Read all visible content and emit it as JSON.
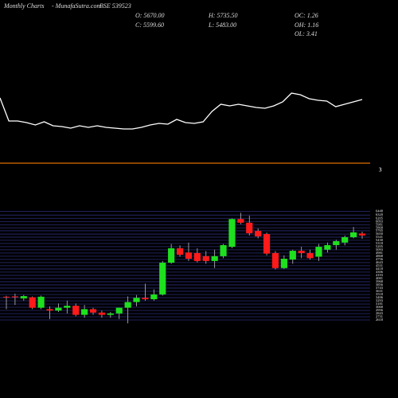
{
  "header": {
    "site_title": "Monthly Charts",
    "site_name": "- MunafaSutra.com",
    "symbol": "BSE 539523",
    "open": "O: 5670.00",
    "high": "H: 5735.50",
    "close": "C: 5599.60",
    "low": "L: 5483.00",
    "oc": "OC: 1.26",
    "oh": "OH: 1.16",
    "ol": "OL: 3.41"
  },
  "chart_data": [
    {
      "type": "line",
      "color": "#ffffff",
      "ylim": [
        0,
        80
      ],
      "values": [
        57,
        28,
        28,
        26,
        23,
        27,
        22,
        21,
        19,
        22,
        20,
        22,
        20,
        19,
        18,
        18,
        20,
        23,
        25,
        24,
        30,
        26,
        25,
        27,
        40,
        49,
        47,
        49,
        47,
        45,
        44,
        47,
        52,
        63,
        61,
        56,
        54,
        53,
        46,
        49,
        52,
        55
      ]
    },
    {
      "type": "candlestick",
      "level_label": "3",
      "level_color": "#e07000",
      "up_color": "#1ee01e",
      "down_color": "#ff1a1a",
      "grid_color": "#2c2c7a",
      "ylim": [
        2450,
        6550
      ],
      "yticks": [
        6448,
        6320,
        6205,
        6093,
        5981,
        5868,
        5765,
        5650,
        5541,
        5430,
        5318,
        5205,
        5093,
        4981,
        4868,
        4756,
        4643,
        4531,
        4418,
        4306,
        4193,
        4081,
        3968,
        3856,
        3743,
        3631,
        3518,
        3406,
        3293,
        3181,
        3068,
        2956,
        2843,
        2731,
        2618
      ],
      "open": [
        3440,
        3450,
        3380,
        3420,
        3050,
        3000,
        2950,
        3050,
        3120,
        2800,
        3000,
        2880,
        2800,
        2850,
        3050,
        3250,
        3400,
        3350,
        3520,
        4640,
        5150,
        5000,
        4980,
        4870,
        4700,
        4870,
        5200,
        6180,
        6050,
        5760,
        5650,
        4980,
        4450,
        4750,
        5060,
        4980,
        4850,
        5100,
        5260,
        5350,
        5540,
        5670
      ],
      "high": [
        3470,
        3550,
        3500,
        3450,
        3480,
        3100,
        3200,
        3300,
        3200,
        3150,
        3050,
        2950,
        2900,
        3050,
        3450,
        3500,
        3900,
        3700,
        4700,
        5300,
        5250,
        5350,
        5150,
        5050,
        5100,
        5300,
        6200,
        6400,
        6300,
        5850,
        5700,
        5050,
        4900,
        5100,
        5200,
        5100,
        5300,
        5350,
        5450,
        5600,
        5900,
        5735.5
      ],
      "low": [
        3000,
        3150,
        3300,
        3000,
        3000,
        2650,
        2900,
        2850,
        2750,
        2700,
        2800,
        2700,
        2700,
        2650,
        2500,
        3100,
        3300,
        3300,
        3480,
        4600,
        4850,
        4700,
        4650,
        4600,
        4450,
        4800,
        5150,
        6000,
        5600,
        5500,
        4900,
        4400,
        4420,
        4600,
        4800,
        4750,
        4700,
        5000,
        5100,
        5250,
        5500,
        5483
      ],
      "close": [
        3420,
        3420,
        3460,
        3050,
        3440,
        2950,
        3050,
        3120,
        2800,
        3000,
        2880,
        2800,
        2850,
        3050,
        3250,
        3400,
        3350,
        3520,
        4640,
        5150,
        4920,
        4780,
        4700,
        4700,
        4870,
        5260,
        6180,
        6050,
        5680,
        5570,
        4960,
        4450,
        4780,
        5060,
        4980,
        4800,
        5200,
        5260,
        5400,
        5540,
        5710,
        5599.6
      ]
    }
  ]
}
